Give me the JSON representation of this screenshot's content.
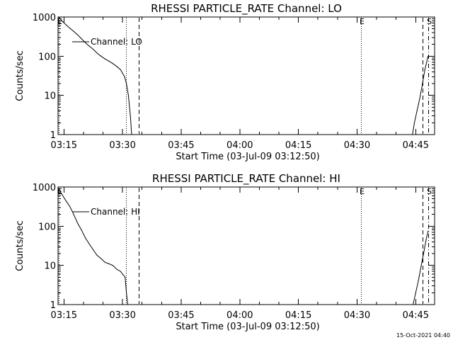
{
  "footer_timestamp": "15-Oct-2021 04:40",
  "chart_data": [
    {
      "type": "line",
      "title": "RHESSI PARTICLE_RATE Channel: LO",
      "xlabel": "Start Time (03-Jul-09 03:12:50)",
      "ylabel": "Counts/sec",
      "y_scale": "log",
      "xlim": [
        "03:13:30",
        "04:49:50"
      ],
      "ylim": [
        1,
        1000
      ],
      "x_ticks": [
        "03:15",
        "03:30",
        "03:45",
        "04:00",
        "04:15",
        "04:30",
        "04:45"
      ],
      "y_ticks": [
        "1",
        "10",
        "100",
        "1000"
      ],
      "legend": "Channel: LO",
      "legend_position": "top-left",
      "markers": [
        {
          "label": "E",
          "time": "03:13:40",
          "style": "dotted"
        },
        {
          "label": "",
          "time": "03:30:50",
          "style": "dotted"
        },
        {
          "label": "",
          "time": "03:34:10",
          "style": "dashed"
        },
        {
          "label": "E",
          "time": "04:31:00",
          "style": "dotted"
        },
        {
          "label": "",
          "time": "04:46:40",
          "style": "dashed"
        },
        {
          "label": "S",
          "time": "04:48:10",
          "style": "dashdot"
        }
      ],
      "series": [
        {
          "x": [
            "03:13:40",
            "03:14:30",
            "03:15:30",
            "03:16:30",
            "03:17:30",
            "03:18:30",
            "03:19:30",
            "03:20:30",
            "03:21:30",
            "03:22:30",
            "03:23:30",
            "03:24:30",
            "03:25:30",
            "03:26:30",
            "03:27:30",
            "03:28:30",
            "03:29:30",
            "03:30:30",
            "03:31:00",
            "03:31:30",
            "03:32:00",
            "03:32:20"
          ],
          "values": [
            1000,
            800,
            640,
            520,
            430,
            350,
            280,
            220,
            180,
            150,
            120,
            100,
            85,
            75,
            65,
            55,
            45,
            30,
            20,
            10,
            3,
            1
          ]
        },
        {
          "x": [
            "04:44:10",
            "04:44:40",
            "04:45:20",
            "04:46:00",
            "04:46:40",
            "04:47:20",
            "04:48:10"
          ],
          "values": [
            1,
            2,
            4,
            8,
            18,
            45,
            100
          ]
        }
      ]
    },
    {
      "type": "line",
      "title": "RHESSI PARTICLE_RATE Channel: HI",
      "xlabel": "Start Time (03-Jul-09 03:12:50)",
      "ylabel": "Counts/sec",
      "y_scale": "log",
      "xlim": [
        "03:13:30",
        "04:49:50"
      ],
      "ylim": [
        1,
        1000
      ],
      "x_ticks": [
        "03:15",
        "03:30",
        "03:45",
        "04:00",
        "04:15",
        "04:30",
        "04:45"
      ],
      "y_ticks": [
        "1",
        "10",
        "100",
        "1000"
      ],
      "legend": "Channel: HI",
      "legend_position": "top-left",
      "markers": [
        {
          "label": "E",
          "time": "03:13:40",
          "style": "dotted"
        },
        {
          "label": "",
          "time": "03:30:50",
          "style": "dotted"
        },
        {
          "label": "",
          "time": "03:34:10",
          "style": "dashed"
        },
        {
          "label": "E",
          "time": "04:31:00",
          "style": "dotted"
        },
        {
          "label": "",
          "time": "04:46:40",
          "style": "dashed"
        },
        {
          "label": "S",
          "time": "04:48:10",
          "style": "dashdot"
        }
      ],
      "series": [
        {
          "x": [
            "03:13:40",
            "03:14:30",
            "03:15:30",
            "03:16:30",
            "03:17:30",
            "03:18:30",
            "03:19:30",
            "03:20:30",
            "03:21:30",
            "03:22:30",
            "03:23:30",
            "03:24:30",
            "03:25:30",
            "03:26:30",
            "03:27:30",
            "03:28:30",
            "03:29:30",
            "03:30:00",
            "03:30:40",
            "03:31:00",
            "03:31:20"
          ],
          "values": [
            900,
            650,
            450,
            320,
            200,
            120,
            80,
            50,
            35,
            25,
            18,
            15,
            12,
            11,
            10,
            8,
            7,
            6,
            5,
            2,
            1
          ]
        },
        {
          "x": [
            "04:44:20",
            "04:45:00",
            "04:45:40",
            "04:46:20",
            "04:47:00",
            "04:47:40",
            "04:48:10"
          ],
          "values": [
            1,
            2,
            4,
            9,
            20,
            45,
            75
          ]
        }
      ]
    }
  ]
}
